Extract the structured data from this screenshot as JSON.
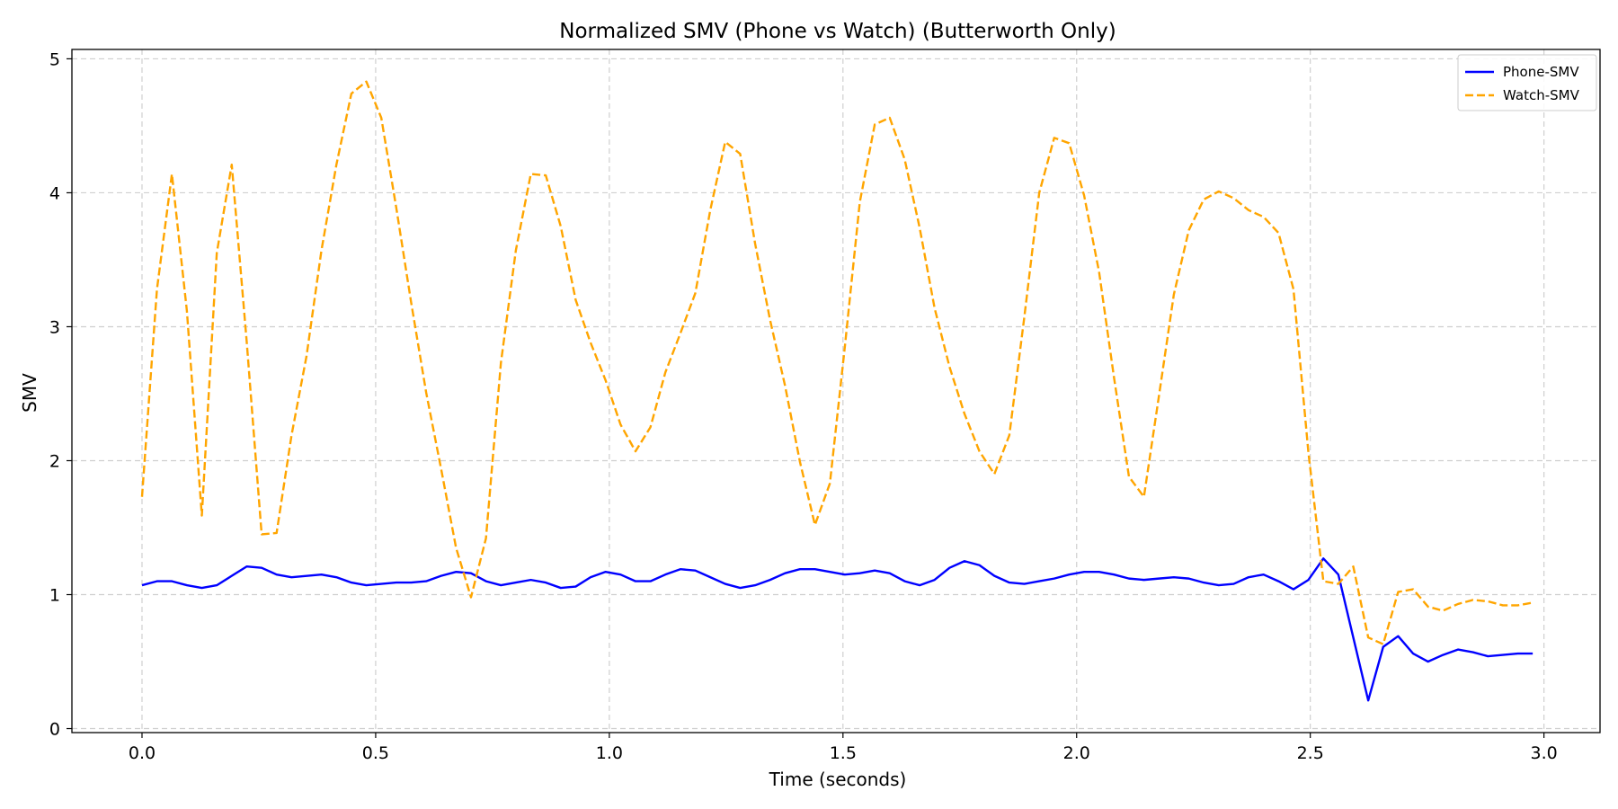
{
  "chart_data": {
    "type": "line",
    "title": "Normalized SMV (Phone vs Watch) (Butterworth Only)",
    "xlabel": "Time (seconds)",
    "ylabel": "SMV",
    "xlim": [
      -0.15,
      3.12
    ],
    "ylim": [
      -0.03,
      5.07
    ],
    "xticks": [
      0.0,
      0.5,
      1.0,
      1.5,
      2.0,
      2.5,
      3.0
    ],
    "xtick_labels": [
      "0.0",
      "0.5",
      "1.0",
      "1.5",
      "2.0",
      "2.5",
      "3.0"
    ],
    "yticks": [
      0,
      1,
      2,
      3,
      4,
      5
    ],
    "ytick_labels": [
      "0",
      "1",
      "2",
      "3",
      "4",
      "5"
    ],
    "grid": true,
    "legend_position": "top-right",
    "x": [
      0.0,
      0.032,
      0.064,
      0.096,
      0.128,
      0.16,
      0.192,
      0.224,
      0.256,
      0.288,
      0.32,
      0.352,
      0.384,
      0.416,
      0.448,
      0.48,
      0.512,
      0.544,
      0.576,
      0.608,
      0.64,
      0.672,
      0.704,
      0.736,
      0.768,
      0.8,
      0.832,
      0.864,
      0.896,
      0.928,
      0.96,
      0.992,
      1.024,
      1.056,
      1.088,
      1.12,
      1.152,
      1.184,
      1.216,
      1.248,
      1.28,
      1.312,
      1.344,
      1.376,
      1.408,
      1.44,
      1.472,
      1.504,
      1.536,
      1.568,
      1.6,
      1.632,
      1.664,
      1.696,
      1.728,
      1.76,
      1.792,
      1.824,
      1.856,
      1.888,
      1.92,
      1.952,
      1.984,
      2.016,
      2.048,
      2.08,
      2.112,
      2.144,
      2.176,
      2.208,
      2.24,
      2.272,
      2.304,
      2.336,
      2.368,
      2.4,
      2.432,
      2.464,
      2.496,
      2.528,
      2.56,
      2.592,
      2.624,
      2.656,
      2.688,
      2.72,
      2.752,
      2.784,
      2.816,
      2.848,
      2.88,
      2.912,
      2.944,
      2.976
    ],
    "series": [
      {
        "name": "Phone-SMV",
        "color": "#0000ff",
        "style": "solid",
        "values": [
          1.07,
          1.1,
          1.1,
          1.07,
          1.05,
          1.07,
          1.14,
          1.21,
          1.2,
          1.15,
          1.13,
          1.14,
          1.15,
          1.13,
          1.09,
          1.07,
          1.08,
          1.09,
          1.09,
          1.1,
          1.14,
          1.17,
          1.16,
          1.1,
          1.07,
          1.09,
          1.11,
          1.09,
          1.05,
          1.06,
          1.13,
          1.17,
          1.15,
          1.1,
          1.1,
          1.15,
          1.19,
          1.18,
          1.13,
          1.08,
          1.05,
          1.07,
          1.11,
          1.16,
          1.19,
          1.19,
          1.17,
          1.15,
          1.16,
          1.18,
          1.16,
          1.1,
          1.07,
          1.11,
          1.2,
          1.25,
          1.22,
          1.14,
          1.09,
          1.08,
          1.1,
          1.12,
          1.15,
          1.17,
          1.17,
          1.15,
          1.12,
          1.11,
          1.12,
          1.13,
          1.12,
          1.09,
          1.07,
          1.08,
          1.13,
          1.15,
          1.1,
          1.04,
          1.11,
          1.27,
          1.15,
          0.68,
          0.21,
          0.61,
          0.69,
          0.56,
          0.5,
          0.55,
          0.59,
          0.57,
          0.54,
          0.55,
          0.56,
          0.56
        ]
      },
      {
        "name": "Watch-SMV",
        "color": "#ffa500",
        "style": "dashed",
        "values": [
          1.73,
          3.28,
          4.14,
          3.12,
          1.59,
          3.55,
          4.21,
          2.89,
          1.45,
          1.46,
          2.19,
          2.78,
          3.57,
          4.21,
          4.74,
          4.83,
          4.56,
          3.89,
          3.18,
          2.51,
          1.94,
          1.35,
          0.98,
          1.42,
          2.73,
          3.57,
          4.14,
          4.13,
          3.75,
          3.2,
          2.88,
          2.6,
          2.27,
          2.07,
          2.25,
          2.66,
          2.95,
          3.25,
          3.87,
          4.38,
          4.29,
          3.62,
          3.05,
          2.56,
          1.99,
          1.52,
          1.83,
          2.85,
          3.93,
          4.51,
          4.56,
          4.25,
          3.74,
          3.14,
          2.7,
          2.35,
          2.07,
          1.9,
          2.19,
          3.07,
          4.0,
          4.41,
          4.37,
          3.98,
          3.41,
          2.62,
          1.88,
          1.73,
          2.48,
          3.24,
          3.72,
          3.95,
          4.01,
          3.96,
          3.87,
          3.82,
          3.7,
          3.28,
          2.06,
          1.1,
          1.08,
          1.21,
          0.68,
          0.63,
          1.02,
          1.04,
          0.91,
          0.88,
          0.93,
          0.96,
          0.95,
          0.92,
          0.92,
          0.94
        ]
      }
    ]
  }
}
